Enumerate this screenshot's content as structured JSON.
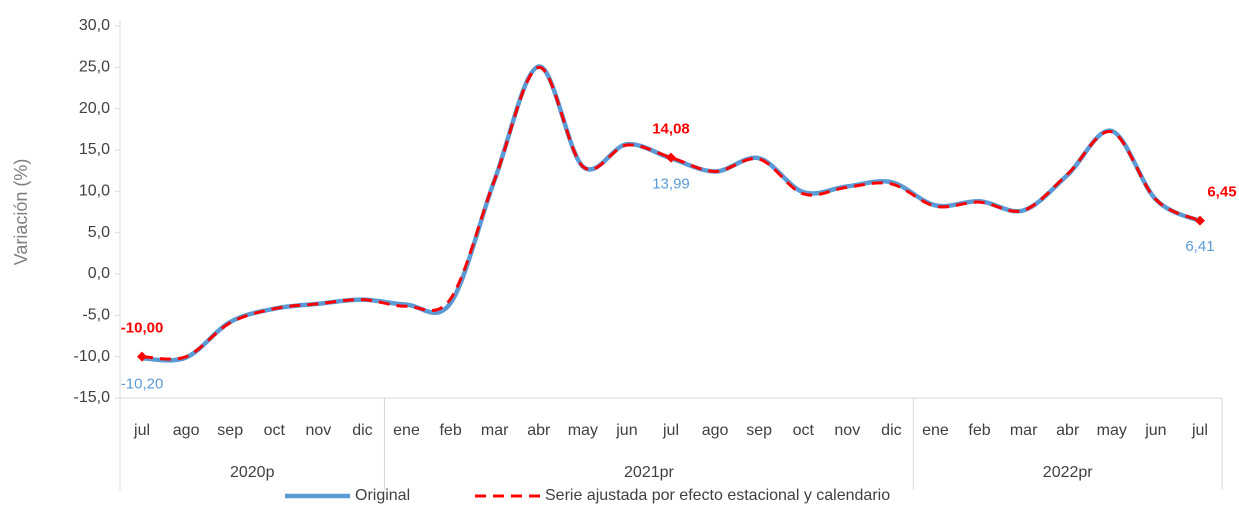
{
  "chart_data": {
    "type": "line",
    "y_axis_label": "Variación (%)",
    "categories": [
      "jul",
      "ago",
      "sep",
      "oct",
      "nov",
      "dic",
      "ene",
      "feb",
      "mar",
      "abr",
      "may",
      "jun",
      "jul",
      "ago",
      "sep",
      "oct",
      "nov",
      "dic",
      "ene",
      "feb",
      "mar",
      "abr",
      "may",
      "jun",
      "jul"
    ],
    "groups": [
      {
        "label": "2020p",
        "count": 6
      },
      {
        "label": "2021pr",
        "count": 12
      },
      {
        "label": "2022pr",
        "count": 7
      }
    ],
    "series": [
      {
        "name": "Original",
        "color": "#5b9bd5",
        "style": "solid",
        "values": [
          -10.2,
          -10.1,
          -5.8,
          -4.2,
          -3.6,
          -3.1,
          -3.7,
          -3.5,
          11.4,
          25.1,
          13.0,
          15.7,
          13.99,
          12.4,
          14.0,
          9.9,
          10.6,
          11.1,
          8.3,
          8.8,
          7.7,
          12.0,
          17.3,
          9.0,
          6.41
        ],
        "value_labels": [
          "-10,20",
          null,
          null,
          null,
          null,
          null,
          null,
          null,
          null,
          null,
          null,
          null,
          "13,99",
          null,
          null,
          null,
          null,
          null,
          null,
          null,
          null,
          null,
          null,
          null,
          "6,41"
        ]
      },
      {
        "name": "Serie ajustada por efecto estacional y calendario",
        "color": "#ff0000",
        "style": "dashed",
        "values": [
          -10.0,
          -10.0,
          -5.9,
          -4.2,
          -3.6,
          -3.1,
          -3.9,
          -3.0,
          11.4,
          25.0,
          13.0,
          15.6,
          14.08,
          12.4,
          13.9,
          9.7,
          10.5,
          10.9,
          8.2,
          8.7,
          7.7,
          12.1,
          17.2,
          9.0,
          6.45
        ],
        "value_labels": [
          "-10,00",
          null,
          null,
          null,
          null,
          null,
          null,
          null,
          null,
          null,
          null,
          null,
          "14,08",
          null,
          null,
          null,
          null,
          null,
          null,
          null,
          null,
          null,
          null,
          null,
          "6,45"
        ]
      }
    ],
    "ylim": [
      -15,
      30
    ],
    "yticks": [
      {
        "value": -15,
        "label": "-15,0"
      },
      {
        "value": -10,
        "label": "-10,0"
      },
      {
        "value": -5,
        "label": "-5,0"
      },
      {
        "value": 0,
        "label": "0,0"
      },
      {
        "value": 5,
        "label": "5,0"
      },
      {
        "value": 10,
        "label": "10,0"
      },
      {
        "value": 15,
        "label": "15,0"
      },
      {
        "value": 20,
        "label": "20,0"
      },
      {
        "value": 25,
        "label": "25,0"
      },
      {
        "value": 30,
        "label": "30,0"
      }
    ],
    "legend": "bottom"
  }
}
